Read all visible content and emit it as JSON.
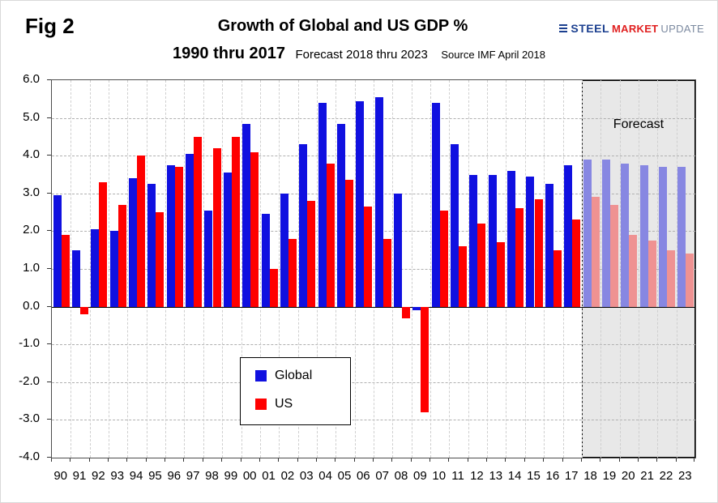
{
  "fig_label": "Fig 2",
  "title": "Growth of Global and US GDP %",
  "subtitle": {
    "bold": "1990 thru 2017",
    "forecast": "Forecast 2018 thru 2023",
    "source": "Source IMF April 2018"
  },
  "logo": {
    "word1": "STEEL",
    "word2": "MARKET",
    "word3": "UPDATE",
    "word1_color": "#1b3f8f",
    "word2_color": "#e02020",
    "word3_color": "#7c8aa0",
    "line_color": "#1b3f8f"
  },
  "forecast_label": "Forecast",
  "chart_data": {
    "type": "bar",
    "title": "Growth of Global and US GDP %",
    "categories": [
      "90",
      "91",
      "92",
      "93",
      "94",
      "95",
      "96",
      "97",
      "98",
      "99",
      "00",
      "01",
      "02",
      "03",
      "04",
      "05",
      "06",
      "07",
      "08",
      "09",
      "10",
      "11",
      "12",
      "13",
      "14",
      "15",
      "16",
      "17",
      "18",
      "19",
      "20",
      "21",
      "22",
      "23"
    ],
    "series": [
      {
        "name": "Global",
        "color": "#1010e0",
        "forecast_color": "#8787e2",
        "values": [
          2.95,
          1.5,
          2.05,
          2.0,
          3.4,
          3.25,
          3.75,
          4.05,
          2.55,
          3.55,
          4.85,
          2.45,
          3.0,
          4.3,
          5.4,
          4.85,
          5.45,
          5.55,
          3.0,
          -0.1,
          5.4,
          4.3,
          3.5,
          3.5,
          3.6,
          3.45,
          3.25,
          3.75,
          3.9,
          3.9,
          3.8,
          3.75,
          3.7,
          3.7
        ]
      },
      {
        "name": "US",
        "color": "#ff0000",
        "forecast_color": "#ef9292",
        "values": [
          1.9,
          -0.2,
          3.3,
          2.7,
          4.0,
          2.5,
          3.7,
          4.5,
          4.2,
          4.5,
          4.1,
          1.0,
          1.8,
          2.8,
          3.8,
          3.35,
          2.65,
          1.8,
          -0.3,
          -2.8,
          2.55,
          1.6,
          2.2,
          1.7,
          2.6,
          2.85,
          1.5,
          2.3,
          2.9,
          2.7,
          1.9,
          1.75,
          1.5,
          1.4
        ]
      }
    ],
    "ylim": [
      -4.0,
      6.0
    ],
    "ytick_step": 1.0,
    "forecast_start_index": 28,
    "forecast_region_bg": "#e8e8e8",
    "grid": true,
    "legend_position": "inside-bottom-center"
  }
}
